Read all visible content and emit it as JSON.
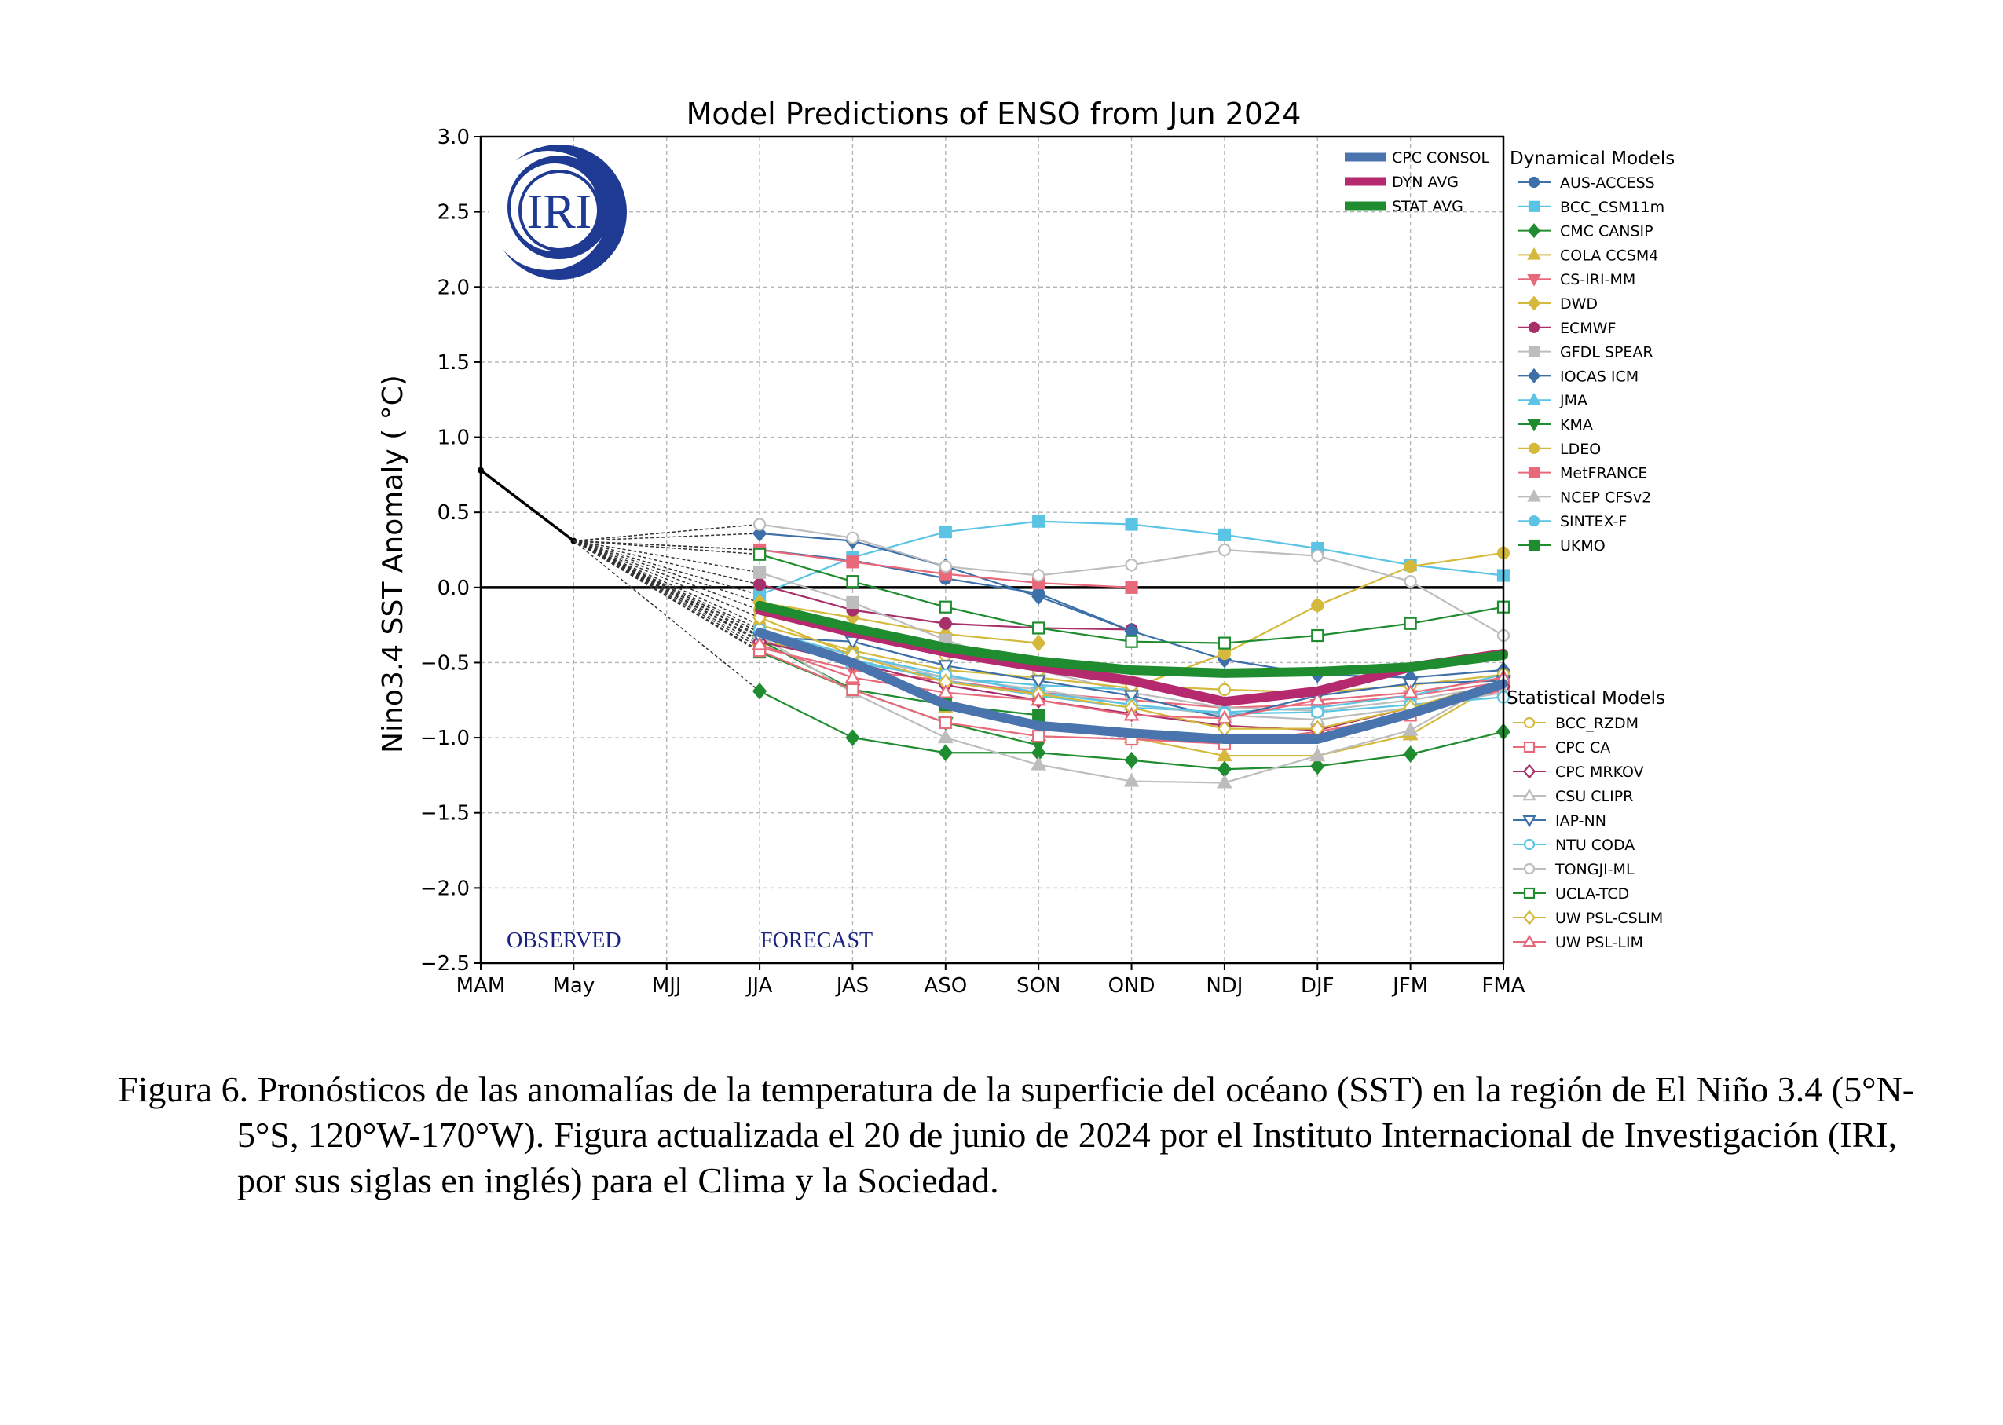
{
  "chart_data": {
    "type": "line",
    "title": "Model Predictions of ENSO from Jun 2024",
    "ylabel": "Nino3.4 SST Anomaly ( °C)",
    "xlabel": "",
    "ylim": [
      -2.5,
      3.0
    ],
    "yticks": [
      "−2.5",
      "−2.0",
      "−1.5",
      "−1.0",
      "−0.5",
      "0.0",
      "0.5",
      "1.0",
      "1.5",
      "2.0",
      "2.5",
      "3.0"
    ],
    "categories": [
      "MAM",
      "May",
      "MJJ",
      "JJA",
      "JAS",
      "ASO",
      "SON",
      "OND",
      "NDJ",
      "DJF",
      "JFM",
      "FMA"
    ],
    "grid": true,
    "logo_text": "IRI",
    "observed_label": "OBSERVED",
    "forecast_label": "FORECAST",
    "observed": [
      0.78,
      0.31
    ],
    "averages_legend_title": "",
    "dynamical_legend_title": "Dynamical Models",
    "statistical_legend_title": "Statistical Models",
    "averages": [
      {
        "name": "CPC CONSOL",
        "color": "#4a74ad",
        "values": [
          -0.3,
          -0.5,
          -0.78,
          -0.92,
          -0.97,
          -1.01,
          -1.01,
          -0.84,
          -0.64
        ]
      },
      {
        "name": "DYN AVG",
        "color": "#b5296f",
        "values": [
          -0.15,
          -0.3,
          -0.43,
          -0.53,
          -0.62,
          -0.76,
          -0.69,
          -0.53,
          -0.44
        ]
      },
      {
        "name": "STAT AVG",
        "color": "#1f8c2f",
        "values": [
          -0.12,
          -0.27,
          -0.4,
          -0.49,
          -0.55,
          -0.57,
          -0.56,
          -0.53,
          -0.45
        ]
      }
    ],
    "dynamical": [
      {
        "name": "AUS-ACCESS",
        "color": "#3d6fa8",
        "marker": "circle",
        "filled": true,
        "values": [
          0.25,
          0.18,
          0.06,
          -0.04,
          -0.29,
          null,
          null,
          null,
          null
        ]
      },
      {
        "name": "BCC_CSM11m",
        "color": "#5bc4e4",
        "marker": "square",
        "filled": true,
        "values": [
          -0.05,
          0.2,
          0.37,
          0.44,
          0.42,
          0.35,
          0.26,
          0.15,
          0.08
        ]
      },
      {
        "name": "CMC CANSIP",
        "color": "#1f8c2f",
        "marker": "diamond",
        "filled": true,
        "values": [
          -0.69,
          -1.0,
          -1.1,
          -1.1,
          -1.15,
          -1.21,
          -1.19,
          -1.11,
          -0.96
        ]
      },
      {
        "name": "COLA CCSM4",
        "color": "#d4b93c",
        "marker": "triangle-up",
        "filled": true,
        "values": [
          -0.35,
          -0.5,
          -0.8,
          -0.9,
          -1.0,
          -1.12,
          -1.12,
          -0.98,
          -0.62
        ]
      },
      {
        "name": "CS-IRI-MM",
        "color": "#e8697a",
        "marker": "triangle-down",
        "filled": true,
        "values": [
          -0.4,
          -0.55,
          -0.62,
          -0.7,
          -0.75,
          -0.8,
          -0.78,
          -0.72,
          -0.63
        ]
      },
      {
        "name": "DWD",
        "color": "#d4b93c",
        "marker": "diamond",
        "filled": true,
        "values": [
          -0.1,
          -0.2,
          -0.31,
          -0.37,
          null,
          null,
          null,
          null,
          null
        ]
      },
      {
        "name": "ECMWF",
        "color": "#a8306a",
        "marker": "circle",
        "filled": true,
        "values": [
          0.02,
          -0.15,
          -0.24,
          -0.27,
          -0.28,
          null,
          null,
          null,
          null
        ]
      },
      {
        "name": "GFDL SPEAR",
        "color": "#bdbdbd",
        "marker": "square",
        "filled": true,
        "values": [
          0.1,
          -0.1,
          -0.35,
          -0.55,
          -0.7,
          -0.8,
          -0.82,
          -0.75,
          -0.65
        ]
      },
      {
        "name": "IOCAS ICM",
        "color": "#3d6fa8",
        "marker": "diamond",
        "filled": true,
        "values": [
          0.36,
          0.31,
          0.14,
          -0.06,
          -0.29,
          -0.48,
          -0.58,
          -0.6,
          -0.55
        ]
      },
      {
        "name": "JMA",
        "color": "#5bc4e4",
        "marker": "triangle-up",
        "filled": true,
        "values": [
          -0.3,
          -0.5,
          -0.6,
          -0.65,
          -0.68,
          null,
          null,
          null,
          null
        ]
      },
      {
        "name": "KMA",
        "color": "#1f8c2f",
        "marker": "triangle-down",
        "filled": true,
        "values": [
          -0.35,
          -0.68,
          -0.9,
          -1.05,
          null,
          null,
          null,
          null,
          null
        ]
      },
      {
        "name": "LDEO",
        "color": "#d4b93c",
        "marker": "circle",
        "filled": true,
        "values": [
          -0.25,
          -0.42,
          -0.55,
          -0.6,
          -0.67,
          -0.44,
          -0.12,
          0.14,
          0.23
        ]
      },
      {
        "name": "MetFRANCE",
        "color": "#e8697a",
        "marker": "square",
        "filled": true,
        "values": [
          0.25,
          0.17,
          0.09,
          0.03,
          0.0,
          null,
          null,
          null,
          null
        ]
      },
      {
        "name": "NCEP CFSv2",
        "color": "#bdbdbd",
        "marker": "triangle-up",
        "filled": true,
        "values": [
          -0.32,
          -0.7,
          -1.0,
          -1.18,
          -1.29,
          -1.3,
          -1.12,
          -0.95,
          -0.6
        ]
      },
      {
        "name": "SINTEX-F",
        "color": "#5bc4e4",
        "marker": "circle",
        "filled": true,
        "values": [
          -0.3,
          -0.48,
          -0.62,
          -0.72,
          -0.8,
          -0.83,
          -0.8,
          -0.72,
          -0.58
        ]
      },
      {
        "name": "UKMO",
        "color": "#1f8c2f",
        "marker": "square",
        "filled": true,
        "values": [
          -0.43,
          -0.68,
          -0.78,
          -0.85,
          null,
          null,
          null,
          null,
          null
        ]
      }
    ],
    "statistical": [
      {
        "name": "BCC_RZDM",
        "color": "#d4b93c",
        "marker": "circle",
        "filled": false,
        "values": [
          -0.15,
          -0.32,
          -0.45,
          -0.55,
          -0.65,
          -0.68,
          -0.7,
          -0.65,
          -0.58
        ]
      },
      {
        "name": "CPC CA",
        "color": "#e8697a",
        "marker": "square",
        "filled": false,
        "values": [
          -0.42,
          -0.68,
          -0.9,
          -0.99,
          -1.01,
          -1.04,
          -0.96,
          -0.85,
          -0.68
        ]
      },
      {
        "name": "CPC MRKOV",
        "color": "#a8306a",
        "marker": "diamond",
        "filled": false,
        "values": [
          -0.36,
          -0.5,
          -0.65,
          -0.75,
          -0.84,
          -0.92,
          -0.95,
          -0.8,
          -0.66
        ]
      },
      {
        "name": "CSU CLIPR",
        "color": "#bdbdbd",
        "marker": "triangle-up",
        "filled": false,
        "values": [
          -0.3,
          -0.45,
          -0.6,
          -0.68,
          -0.78,
          -0.85,
          -0.88,
          -0.8,
          -0.7
        ]
      },
      {
        "name": "IAP-NN",
        "color": "#3d6fa8",
        "marker": "triangle-down",
        "filled": false,
        "values": [
          -0.33,
          -0.36,
          -0.52,
          -0.62,
          -0.72,
          -0.87,
          -0.72,
          -0.64,
          -0.62
        ]
      },
      {
        "name": "NTU CODA",
        "color": "#5bc4e4",
        "marker": "circle",
        "filled": false,
        "values": [
          -0.28,
          -0.45,
          -0.58,
          -0.7,
          -0.78,
          -0.84,
          -0.83,
          -0.78,
          -0.73
        ]
      },
      {
        "name": "TONGJI-ML",
        "color": "#bdbdbd",
        "marker": "circle",
        "filled": false,
        "values": [
          0.42,
          0.33,
          0.14,
          0.08,
          0.15,
          0.25,
          0.21,
          0.04,
          -0.32
        ]
      },
      {
        "name": "UCLA-TCD",
        "color": "#1f8c2f",
        "marker": "square",
        "filled": false,
        "values": [
          0.22,
          0.04,
          -0.13,
          -0.27,
          -0.36,
          -0.37,
          -0.32,
          -0.24,
          -0.13
        ]
      },
      {
        "name": "UW PSL-CSLIM",
        "color": "#d4b93c",
        "marker": "diamond",
        "filled": false,
        "values": [
          -0.2,
          -0.45,
          -0.63,
          -0.71,
          -0.8,
          -0.94,
          -0.94,
          -0.8,
          -0.62
        ]
      },
      {
        "name": "UW PSL-LIM",
        "color": "#e8697a",
        "marker": "triangle-up",
        "filled": false,
        "values": [
          -0.38,
          -0.6,
          -0.7,
          -0.75,
          -0.85,
          -0.87,
          -0.75,
          -0.7,
          -0.6
        ]
      }
    ]
  },
  "caption": {
    "text": "Figura 6. Pronósticos de las anomalías de la temperatura de la superficie del océano (SST) en la región de El Niño 3.4 (5°N-5°S, 120°W-170°W). Figura actualizada el 20 de junio de 2024 por el Instituto Internacional de Investigación (IRI, por sus siglas en inglés) para el Clima y la Sociedad."
  }
}
